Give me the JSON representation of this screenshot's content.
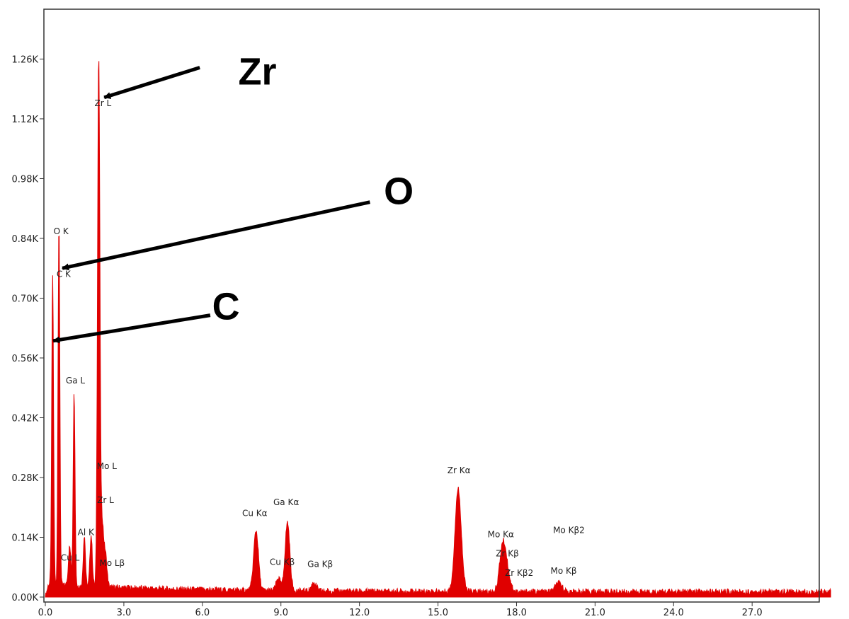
{
  "chart_data": {
    "type": "area",
    "x_ticks": [
      "0.0",
      "3.0",
      "6.0",
      "9.0",
      "12.0",
      "15.0",
      "18.0",
      "21.0",
      "24.0",
      "27.0"
    ],
    "y_ticks": [
      "0.00K",
      "0.14K",
      "0.28K",
      "0.42K",
      "0.56K",
      "0.70K",
      "0.84K",
      "0.98K",
      "1.12K",
      "1.26K"
    ],
    "xlim": [
      0,
      30
    ],
    "ylim": [
      0,
      1.38
    ],
    "grid": false,
    "series_color": "#e00000",
    "peaks": [
      {
        "x": 0.28,
        "y": 0.72,
        "w": 0.035
      },
      {
        "x": 0.52,
        "y": 0.84,
        "w": 0.035
      },
      {
        "x": 0.93,
        "y": 0.09,
        "w": 0.05
      },
      {
        "x": 1.1,
        "y": 0.45,
        "w": 0.035
      },
      {
        "x": 1.49,
        "y": 0.12,
        "w": 0.04
      },
      {
        "x": 1.75,
        "y": 0.12,
        "w": 0.045
      },
      {
        "x": 2.04,
        "y": 1.24,
        "w": 0.045
      },
      {
        "x": 2.17,
        "y": 0.14,
        "w": 0.05
      },
      {
        "x": 2.29,
        "y": 0.08,
        "w": 0.06
      },
      {
        "x": 8.05,
        "y": 0.14,
        "w": 0.09
      },
      {
        "x": 8.9,
        "y": 0.03,
        "w": 0.08
      },
      {
        "x": 9.25,
        "y": 0.16,
        "w": 0.09
      },
      {
        "x": 10.26,
        "y": 0.02,
        "w": 0.09
      },
      {
        "x": 15.77,
        "y": 0.24,
        "w": 0.12
      },
      {
        "x": 17.48,
        "y": 0.11,
        "w": 0.12
      },
      {
        "x": 17.67,
        "y": 0.03,
        "w": 0.12
      },
      {
        "x": 19.61,
        "y": 0.02,
        "w": 0.13
      }
    ],
    "peak_labels": [
      {
        "text": "Zr L",
        "x": 2.2,
        "y": 1.15
      },
      {
        "text": "O  K",
        "x": 0.6,
        "y": 0.85
      },
      {
        "text": "C  K",
        "x": 0.7,
        "y": 0.75
      },
      {
        "text": "Ga L",
        "x": 1.15,
        "y": 0.5
      },
      {
        "text": "Mo L",
        "x": 2.35,
        "y": 0.3
      },
      {
        "text": "Zr L",
        "x": 2.3,
        "y": 0.22
      },
      {
        "text": "Al K",
        "x": 1.55,
        "y": 0.145
      },
      {
        "text": "Cu L",
        "x": 0.95,
        "y": 0.085
      },
      {
        "text": "Mo Lβ",
        "x": 2.55,
        "y": 0.073
      },
      {
        "text": "Cu Kα",
        "x": 8.0,
        "y": 0.19
      },
      {
        "text": "Ga Kα",
        "x": 9.2,
        "y": 0.215
      },
      {
        "text": "Cu Kβ",
        "x": 9.05,
        "y": 0.075
      },
      {
        "text": "Ga Kβ",
        "x": 10.5,
        "y": 0.07
      },
      {
        "text": "Zr Kα",
        "x": 15.8,
        "y": 0.29
      },
      {
        "text": "Mo Kα",
        "x": 17.4,
        "y": 0.14
      },
      {
        "text": "Mo Kβ2",
        "x": 20.0,
        "y": 0.15
      },
      {
        "text": "Zr Kβ",
        "x": 17.65,
        "y": 0.095
      },
      {
        "text": "Zr Kβ2",
        "x": 18.1,
        "y": 0.05
      },
      {
        "text": "Mo Kβ",
        "x": 19.8,
        "y": 0.055
      }
    ],
    "annotations": [
      {
        "text": "Zr",
        "text_x": 8.1,
        "text_y": 1.2,
        "tail_x": 5.9,
        "tail_y": 1.24,
        "head_x": 2.25,
        "head_y": 1.17
      },
      {
        "text": "O",
        "text_x": 13.5,
        "text_y": 0.92,
        "tail_x": 12.4,
        "tail_y": 0.925,
        "head_x": 0.65,
        "head_y": 0.77
      },
      {
        "text": "C",
        "text_x": 6.9,
        "text_y": 0.65,
        "tail_x": 6.3,
        "tail_y": 0.66,
        "head_x": 0.3,
        "head_y": 0.6
      }
    ]
  }
}
